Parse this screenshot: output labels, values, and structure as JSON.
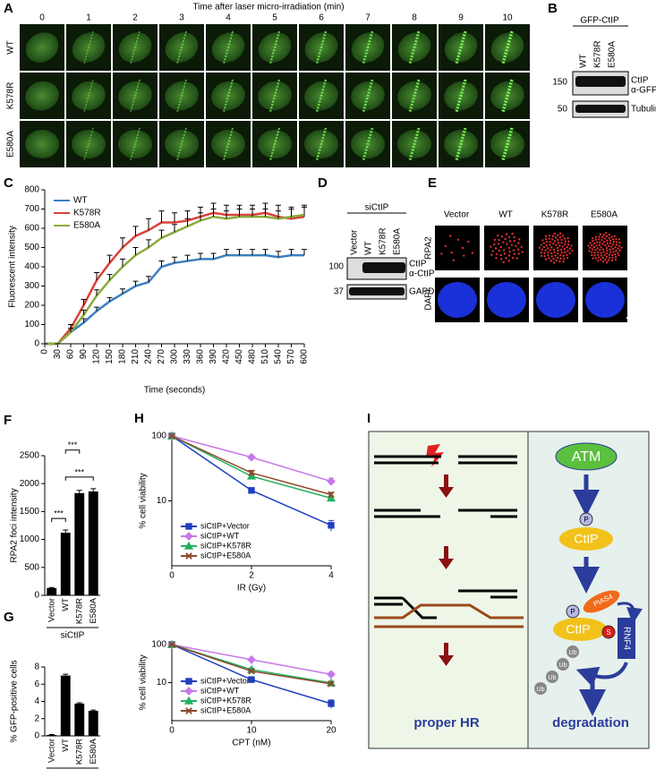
{
  "panel_labels": [
    "A",
    "B",
    "C",
    "D",
    "E",
    "F",
    "G",
    "H",
    "I"
  ],
  "panel_a": {
    "title": "Time after laser micro-irradiation (min)",
    "columns": [
      "0",
      "1",
      "2",
      "3",
      "4",
      "5",
      "6",
      "7",
      "8",
      "9",
      "10"
    ],
    "rows": [
      "WT",
      "K578R",
      "E580A"
    ]
  },
  "panel_b": {
    "header": "GFP-CtIP",
    "lanes": [
      "WT",
      "K578R",
      "E580A"
    ],
    "markers": [
      "150",
      "50"
    ],
    "band_labels": [
      "CtIP",
      "α-GFP",
      "Tubulin"
    ]
  },
  "panel_d": {
    "header": "siCtIP",
    "lanes": [
      "Vector",
      "WT",
      "K578R",
      "E580A"
    ],
    "markers": [
      "100",
      "37"
    ],
    "band_labels": [
      "CtIP",
      "α-CtIP",
      "GAPDH"
    ]
  },
  "panel_e": {
    "columns": [
      "Vector",
      "WT",
      "K578R",
      "E580A"
    ],
    "rows": [
      "RPA2",
      "DAPI"
    ]
  },
  "panel_i": {
    "left_label": "proper HR",
    "atm": "ATM",
    "p1": "P",
    "ctip1": "CtIP",
    "p2": "P",
    "pias4": "PIAS4",
    "ctip2": "CtIP",
    "s": "S",
    "rnf4": "RNF4",
    "ub": [
      "Ub",
      "Ub",
      "Ub",
      "Ub"
    ],
    "right_label": "degradation"
  },
  "chart_data": [
    {
      "type": "line",
      "xlabel": "Time (seconds)",
      "ylabel": "Fluorescent intensity",
      "x": [
        0,
        30,
        60,
        90,
        120,
        150,
        180,
        210,
        240,
        270,
        300,
        330,
        360,
        390,
        420,
        450,
        480,
        510,
        540,
        570,
        600
      ],
      "xlim": [
        0,
        600
      ],
      "xticks": [
        0,
        30,
        60,
        90,
        120,
        150,
        180,
        210,
        240,
        270,
        300,
        330,
        360,
        390,
        420,
        450,
        480,
        510,
        540,
        570,
        600
      ],
      "xtick_rotation": 90,
      "ylim": [
        0,
        800
      ],
      "yticks": [
        0,
        100,
        200,
        300,
        400,
        500,
        600,
        700,
        800
      ],
      "legend": "upper left",
      "series": [
        {
          "name": "WT",
          "color": "#3d7fc1",
          "values": [
            0,
            0,
            60,
            110,
            170,
            220,
            260,
            300,
            320,
            400,
            420,
            430,
            440,
            440,
            460,
            460,
            460,
            460,
            450,
            460,
            460
          ],
          "errors": [
            0,
            0,
            10,
            20,
            20,
            20,
            25,
            25,
            30,
            30,
            30,
            30,
            30,
            30,
            30,
            30,
            30,
            30,
            30,
            30,
            30
          ]
        },
        {
          "name": "K578R",
          "color": "#d9413b",
          "values": [
            0,
            0,
            80,
            200,
            330,
            420,
            500,
            560,
            590,
            630,
            630,
            640,
            660,
            680,
            670,
            670,
            670,
            680,
            660,
            650,
            660
          ],
          "errors": [
            0,
            0,
            20,
            30,
            40,
            40,
            50,
            50,
            60,
            60,
            50,
            50,
            50,
            50,
            50,
            50,
            50,
            50,
            60,
            60,
            60
          ]
        },
        {
          "name": "E580A",
          "color": "#8aab3c",
          "values": [
            0,
            0,
            60,
            150,
            250,
            330,
            400,
            460,
            500,
            550,
            580,
            610,
            640,
            660,
            650,
            660,
            660,
            660,
            650,
            660,
            670
          ],
          "errors": [
            0,
            0,
            20,
            25,
            30,
            30,
            40,
            40,
            40,
            40,
            40,
            40,
            40,
            40,
            40,
            40,
            40,
            40,
            40,
            40,
            40
          ]
        }
      ]
    },
    {
      "type": "bar",
      "ylabel": "RPA2 foci intensity",
      "group_label": "siCtIP",
      "categories": [
        "Vector",
        "WT",
        "K578R",
        "E580A"
      ],
      "values": [
        130,
        1120,
        1830,
        1860
      ],
      "errors": [
        10,
        50,
        50,
        50
      ],
      "color": "#000000",
      "ylim": [
        0,
        2500
      ],
      "yticks": [
        0,
        500,
        1000,
        1500,
        2000,
        2500
      ],
      "annotations": [
        "***",
        "***",
        "***"
      ]
    },
    {
      "type": "bar",
      "ylabel": "% GFP-positive cells",
      "group_label": "siCtIP",
      "categories": [
        "Vector",
        "WT",
        "K578R",
        "E580A"
      ],
      "values": [
        0.1,
        7.0,
        3.75,
        2.9
      ],
      "errors": [
        0.05,
        0.15,
        0.1,
        0.1
      ],
      "color": "#000000",
      "ylim": [
        0,
        8
      ],
      "yticks": [
        0,
        2,
        4,
        6,
        8
      ]
    },
    {
      "type": "line",
      "xlabel": "IR (Gy)",
      "ylabel": "% cell viability",
      "yscale": "log",
      "x": [
        0,
        2,
        4
      ],
      "xlim": [
        0,
        4
      ],
      "xticks": [
        0,
        2,
        4
      ],
      "ylim": [
        1,
        100
      ],
      "yticks": [
        10,
        100
      ],
      "legend": "lower left",
      "series": [
        {
          "name": "siCtIP+Vector",
          "color": "#1f3fbf",
          "marker": "square",
          "values": [
            100,
            14.5,
            4.2
          ],
          "errors": [
            0,
            1.3,
            0.8
          ]
        },
        {
          "name": "siCtIP+WT",
          "color": "#c878e8",
          "marker": "diamond",
          "values": [
            100,
            47,
            20
          ],
          "errors": [
            0,
            3,
            2.5
          ]
        },
        {
          "name": "siCtIP+K578R",
          "color": "#22b060",
          "marker": "triangle",
          "values": [
            100,
            24,
            11
          ],
          "errors": [
            0,
            2,
            1
          ]
        },
        {
          "name": "siCtIP+E580A",
          "color": "#8b4a2b",
          "marker": "cross",
          "values": [
            100,
            27,
            12.5
          ],
          "errors": [
            0,
            2.5,
            1
          ]
        }
      ]
    },
    {
      "type": "line",
      "xlabel": "CPT (nM)",
      "ylabel": "% cell viability",
      "yscale": "log",
      "x": [
        0,
        10,
        20
      ],
      "xlim": [
        0,
        20
      ],
      "xticks": [
        0,
        10,
        20
      ],
      "ylim": [
        1,
        100
      ],
      "yticks": [
        10,
        100
      ],
      "legend": "lower left",
      "series": [
        {
          "name": "siCtIP+Vector",
          "color": "#1f3fbf",
          "marker": "square",
          "values": [
            100,
            12,
            2.8
          ],
          "errors": [
            0,
            1.5,
            0.7
          ]
        },
        {
          "name": "siCtIP+WT",
          "color": "#c878e8",
          "marker": "diamond",
          "values": [
            100,
            40,
            16.5
          ],
          "errors": [
            0,
            3,
            2
          ]
        },
        {
          "name": "siCtIP+K578R",
          "color": "#22b060",
          "marker": "triangle",
          "values": [
            100,
            22,
            9.8
          ],
          "errors": [
            0,
            2,
            1
          ]
        },
        {
          "name": "siCtIP+E580A",
          "color": "#8b4a2b",
          "marker": "cross",
          "values": [
            100,
            20,
            9.3
          ],
          "errors": [
            0,
            2,
            1
          ]
        }
      ]
    }
  ]
}
